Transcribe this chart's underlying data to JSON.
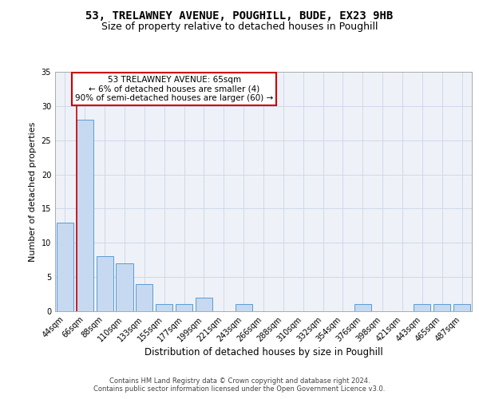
{
  "title1": "53, TRELAWNEY AVENUE, POUGHILL, BUDE, EX23 9HB",
  "title2": "Size of property relative to detached houses in Poughill",
  "xlabel": "Distribution of detached houses by size in Poughill",
  "ylabel": "Number of detached properties",
  "bar_labels": [
    "44sqm",
    "66sqm",
    "88sqm",
    "110sqm",
    "133sqm",
    "155sqm",
    "177sqm",
    "199sqm",
    "221sqm",
    "243sqm",
    "266sqm",
    "288sqm",
    "310sqm",
    "332sqm",
    "354sqm",
    "376sqm",
    "398sqm",
    "421sqm",
    "443sqm",
    "465sqm",
    "487sqm"
  ],
  "bar_values": [
    13,
    28,
    8,
    7,
    4,
    1,
    1,
    2,
    0,
    1,
    0,
    0,
    0,
    0,
    0,
    1,
    0,
    0,
    1,
    1,
    1
  ],
  "bar_color": "#c6d9f0",
  "bar_edge_color": "#5b9bd5",
  "property_line_color": "#cc0000",
  "annotation_text": "53 TRELAWNEY AVENUE: 65sqm\n← 6% of detached houses are smaller (4)\n90% of semi-detached houses are larger (60) →",
  "annotation_box_color": "#ffffff",
  "annotation_box_edge": "#cc0000",
  "ylim": [
    0,
    35
  ],
  "yticks": [
    0,
    5,
    10,
    15,
    20,
    25,
    30,
    35
  ],
  "grid_color": "#d0d8e8",
  "background_color": "#eef2f8",
  "footer_text": "Contains HM Land Registry data © Crown copyright and database right 2024.\nContains public sector information licensed under the Open Government Licence v3.0.",
  "title1_fontsize": 10,
  "title2_fontsize": 9,
  "xlabel_fontsize": 8.5,
  "ylabel_fontsize": 8,
  "tick_fontsize": 7,
  "annotation_fontsize": 7.5,
  "footer_fontsize": 6
}
